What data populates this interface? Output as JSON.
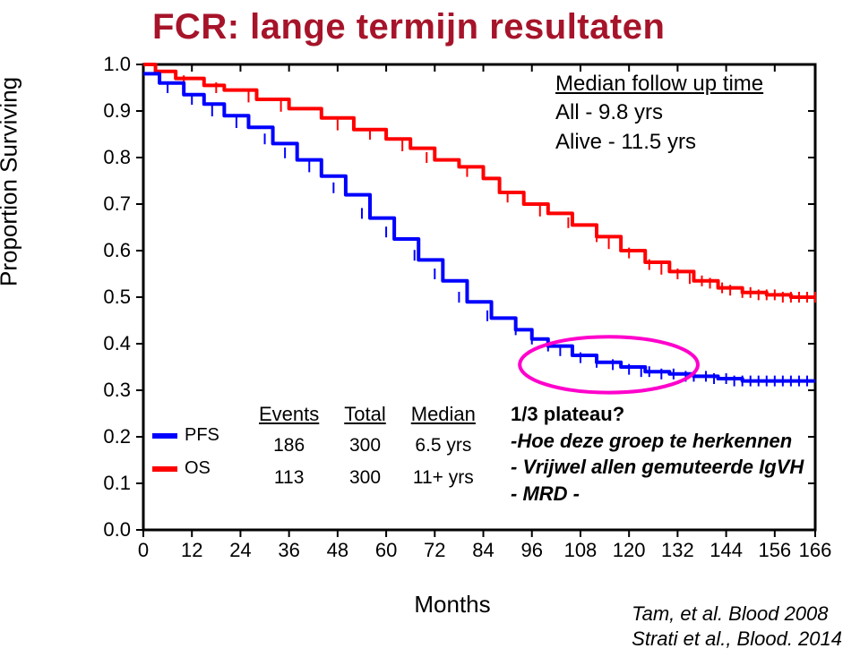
{
  "title": "FCR: lange termijn resultaten",
  "axes": {
    "y_title": "Proportion Surviving",
    "x_title": "Months",
    "y_ticks": [
      0.0,
      0.1,
      0.2,
      0.3,
      0.4,
      0.5,
      0.6,
      0.7,
      0.8,
      0.9,
      1.0
    ],
    "x_ticks": [
      0,
      12,
      24,
      36,
      48,
      60,
      72,
      84,
      96,
      108,
      120,
      132,
      144,
      156,
      166
    ],
    "x_min": 0,
    "x_max": 166,
    "y_min": 0,
    "y_max": 1.0,
    "border_color": "#000000",
    "border_width": 3,
    "tick_fontsize": 22,
    "axis_title_fontsize": 26
  },
  "followup": {
    "header": "Median follow up time",
    "lines": [
      "All    -    9.8 yrs",
      "Alive -  11.5 yrs"
    ],
    "fontsize": 24
  },
  "legend": {
    "fontsize": 20,
    "items": [
      {
        "label": "PFS",
        "color": "#0000ff"
      },
      {
        "label": "OS",
        "color": "#ff0000"
      }
    ]
  },
  "events_table": {
    "headers": [
      "Events",
      "Total",
      "Median"
    ],
    "rows": [
      [
        "186",
        "300",
        "6.5 yrs"
      ],
      [
        "113",
        "300",
        "11+ yrs"
      ]
    ],
    "fontsize": 22
  },
  "plateau": {
    "title": "1/3 plateau?",
    "lines": [
      "-Hoe deze groep te herkennen",
      "- Vrijwel allen gemuteerde IgVH",
      "- MRD -"
    ],
    "fontsize": 22
  },
  "citation": {
    "lines": [
      "Tam, et al. Blood 2008",
      "Strati et al., Blood. 2014"
    ],
    "fontsize": 22
  },
  "series": {
    "os": {
      "color": "#ff0000",
      "line_width": 4,
      "points": [
        [
          0,
          1.0
        ],
        [
          3,
          0.985
        ],
        [
          8,
          0.97
        ],
        [
          15,
          0.955
        ],
        [
          20,
          0.945
        ],
        [
          28,
          0.925
        ],
        [
          36,
          0.905
        ],
        [
          44,
          0.885
        ],
        [
          52,
          0.86
        ],
        [
          60,
          0.84
        ],
        [
          66,
          0.82
        ],
        [
          72,
          0.795
        ],
        [
          78,
          0.78
        ],
        [
          84,
          0.755
        ],
        [
          88,
          0.725
        ],
        [
          94,
          0.7
        ],
        [
          100,
          0.68
        ],
        [
          106,
          0.655
        ],
        [
          112,
          0.63
        ],
        [
          118,
          0.6
        ],
        [
          124,
          0.575
        ],
        [
          130,
          0.555
        ],
        [
          136,
          0.535
        ],
        [
          142,
          0.52
        ],
        [
          148,
          0.51
        ],
        [
          154,
          0.505
        ],
        [
          160,
          0.5
        ],
        [
          166,
          0.5
        ]
      ],
      "censor_marks": [
        [
          10,
          0.965
        ],
        [
          18,
          0.95
        ],
        [
          26,
          0.93
        ],
        [
          34,
          0.91
        ],
        [
          48,
          0.87
        ],
        [
          56,
          0.85
        ],
        [
          64,
          0.825
        ],
        [
          70,
          0.8
        ],
        [
          80,
          0.77
        ],
        [
          90,
          0.715
        ],
        [
          98,
          0.685
        ],
        [
          105,
          0.66
        ],
        [
          112,
          0.63
        ],
        [
          115,
          0.615
        ],
        [
          120,
          0.595
        ],
        [
          125,
          0.57
        ],
        [
          128,
          0.56
        ],
        [
          132,
          0.55
        ],
        [
          135,
          0.54
        ],
        [
          138,
          0.535
        ],
        [
          140,
          0.53
        ],
        [
          143,
          0.52
        ],
        [
          145,
          0.515
        ],
        [
          148,
          0.51
        ],
        [
          150,
          0.51
        ],
        [
          152,
          0.505
        ],
        [
          154,
          0.505
        ],
        [
          156,
          0.505
        ],
        [
          158,
          0.5
        ],
        [
          160,
          0.5
        ],
        [
          162,
          0.5
        ],
        [
          164,
          0.5
        ],
        [
          166,
          0.5
        ]
      ]
    },
    "pfs": {
      "color": "#0000ff",
      "line_width": 4,
      "points": [
        [
          0,
          0.98
        ],
        [
          4,
          0.96
        ],
        [
          10,
          0.935
        ],
        [
          15,
          0.915
        ],
        [
          20,
          0.89
        ],
        [
          26,
          0.865
        ],
        [
          32,
          0.83
        ],
        [
          38,
          0.795
        ],
        [
          44,
          0.76
        ],
        [
          50,
          0.72
        ],
        [
          56,
          0.67
        ],
        [
          62,
          0.625
        ],
        [
          68,
          0.58
        ],
        [
          74,
          0.535
        ],
        [
          80,
          0.49
        ],
        [
          86,
          0.455
        ],
        [
          92,
          0.43
        ],
        [
          96,
          0.41
        ],
        [
          100,
          0.395
        ],
        [
          106,
          0.375
        ],
        [
          112,
          0.36
        ],
        [
          118,
          0.35
        ],
        [
          124,
          0.34
        ],
        [
          130,
          0.335
        ],
        [
          136,
          0.33
        ],
        [
          142,
          0.325
        ],
        [
          148,
          0.32
        ],
        [
          154,
          0.32
        ],
        [
          160,
          0.32
        ],
        [
          166,
          0.32
        ]
      ],
      "censor_marks": [
        [
          6,
          0.95
        ],
        [
          12,
          0.925
        ],
        [
          17,
          0.9
        ],
        [
          23,
          0.875
        ],
        [
          30,
          0.84
        ],
        [
          35,
          0.81
        ],
        [
          41,
          0.78
        ],
        [
          47,
          0.735
        ],
        [
          54,
          0.68
        ],
        [
          60,
          0.64
        ],
        [
          67,
          0.59
        ],
        [
          72,
          0.55
        ],
        [
          78,
          0.5
        ],
        [
          85,
          0.46
        ],
        [
          92,
          0.43
        ],
        [
          96,
          0.41
        ],
        [
          100,
          0.395
        ],
        [
          103,
          0.385
        ],
        [
          108,
          0.37
        ],
        [
          112,
          0.36
        ],
        [
          116,
          0.355
        ],
        [
          120,
          0.345
        ],
        [
          123,
          0.34
        ],
        [
          125,
          0.34
        ],
        [
          128,
          0.335
        ],
        [
          131,
          0.335
        ],
        [
          134,
          0.33
        ],
        [
          136,
          0.33
        ],
        [
          139,
          0.33
        ],
        [
          141,
          0.325
        ],
        [
          144,
          0.325
        ],
        [
          146,
          0.32
        ],
        [
          148,
          0.32
        ],
        [
          150,
          0.32
        ],
        [
          152,
          0.32
        ],
        [
          154,
          0.32
        ],
        [
          156,
          0.32
        ],
        [
          158,
          0.32
        ],
        [
          160,
          0.32
        ],
        [
          162,
          0.32
        ],
        [
          164,
          0.32
        ]
      ]
    }
  },
  "highlight_ellipse": {
    "color": "#ff00cc",
    "stroke_width": 4,
    "cx_month": 115,
    "cy_prop": 0.355,
    "rx_month": 22,
    "ry_prop": 0.06
  },
  "title_color": "#a6142a",
  "title_fontsize": 40,
  "background": "#ffffff"
}
